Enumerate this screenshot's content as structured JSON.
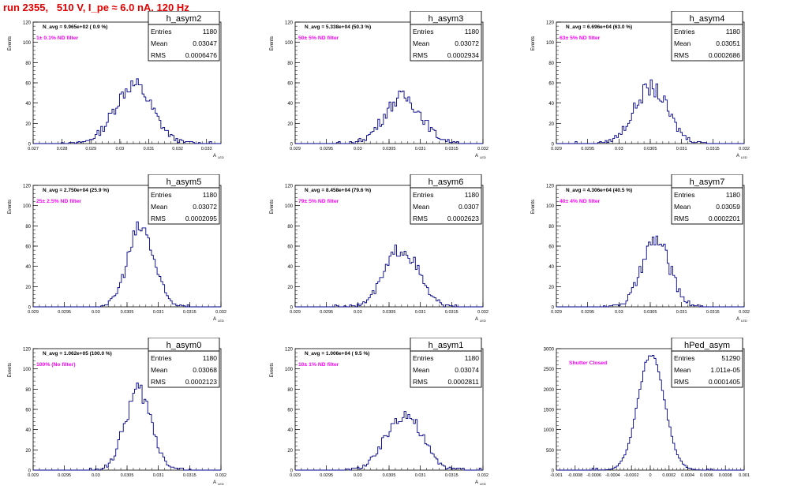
{
  "run_title": "run 2355,   510 V, I_pe ≈ 6.0 nA, 120 Hz",
  "colors": {
    "title": "#e00000",
    "hist": "#00008b",
    "annotation": "#ff00ff",
    "axis": "#000000"
  },
  "chart_data": [
    {
      "type": "histogram",
      "name": "h_asym2",
      "stats": {
        "entries": "1180",
        "mean": "0.03047",
        "rms": "0.0006476"
      },
      "navg": "N_avg = 9.965e+02 ( 0.9 %)",
      "filter": "1± 0.1% ND filter",
      "xlim": [
        0.027,
        0.0335
      ],
      "ylim": [
        0,
        120
      ],
      "xticks": [
        "0.027",
        "0.028",
        "0.029",
        "0.03",
        "0.031",
        "0.032",
        "0.033"
      ],
      "yticks": [
        "0",
        "20",
        "40",
        "60",
        "80",
        "100",
        "120"
      ],
      "ylabel": "Events",
      "xlabel": "A",
      "mean": 0.03047,
      "rms": 0.0006476,
      "peak": 58,
      "nbins": 100
    },
    {
      "type": "histogram",
      "name": "h_asym3",
      "stats": {
        "entries": "1180",
        "mean": "0.03072",
        "rms": "0.0002934"
      },
      "navg": "N_avg = 5.338e+04 (50.3 %)",
      "filter": "50± 5% ND filter",
      "xlim": [
        0.029,
        0.032
      ],
      "ylim": [
        0,
        120
      ],
      "xticks": [
        "0.029",
        "0.0295",
        "0.03",
        "0.0305",
        "0.031",
        "0.0315",
        "0.032"
      ],
      "yticks": [
        "0",
        "20",
        "40",
        "60",
        "80",
        "100",
        "120"
      ],
      "ylabel": "Events",
      "xlabel": "A",
      "mean": 0.03072,
      "rms": 0.0002934,
      "peak": 46,
      "nbins": 100
    },
    {
      "type": "histogram",
      "name": "h_asym4",
      "stats": {
        "entries": "1180",
        "mean": "0.03051",
        "rms": "0.0002686"
      },
      "navg": "N_avg = 6.696e+04 (63.0 %)",
      "filter": "63± 5% ND filter",
      "xlim": [
        0.029,
        0.032
      ],
      "ylim": [
        0,
        120
      ],
      "xticks": [
        "0.029",
        "0.0295",
        "0.03",
        "0.0305",
        "0.031",
        "0.0315",
        "0.032"
      ],
      "yticks": [
        "0",
        "20",
        "40",
        "60",
        "80",
        "100",
        "120"
      ],
      "ylabel": "Events",
      "xlabel": "A",
      "mean": 0.03051,
      "rms": 0.0002686,
      "peak": 55,
      "nbins": 100
    },
    {
      "type": "histogram",
      "name": "h_asym5",
      "stats": {
        "entries": "1180",
        "mean": "0.03072",
        "rms": "0.0002095"
      },
      "navg": "N_avg = 2.750e+04 (25.9 %)",
      "filter": "25± 2.5% ND filter",
      "xlim": [
        0.029,
        0.032
      ],
      "ylim": [
        0,
        120
      ],
      "xticks": [
        "0.029",
        "0.0295",
        "0.03",
        "0.0305",
        "0.031",
        "0.0315",
        "0.032"
      ],
      "yticks": [
        "0",
        "20",
        "40",
        "60",
        "80",
        "100",
        "120"
      ],
      "ylabel": "Events",
      "xlabel": "A",
      "mean": 0.03072,
      "rms": 0.0002095,
      "peak": 78,
      "nbins": 100
    },
    {
      "type": "histogram",
      "name": "h_asym6",
      "stats": {
        "entries": "1180",
        "mean": "0.0307",
        "rms": "0.0002623"
      },
      "navg": "N_avg = 8.458e+04 (79.6 %)",
      "filter": "79± 5% ND filter",
      "xlim": [
        0.029,
        0.032
      ],
      "ylim": [
        0,
        120
      ],
      "xticks": [
        "0.029",
        "0.0295",
        "0.03",
        "0.0305",
        "0.031",
        "0.0315",
        "0.032"
      ],
      "yticks": [
        "0",
        "20",
        "40",
        "60",
        "80",
        "100",
        "120"
      ],
      "ylabel": "Events",
      "xlabel": "A",
      "mean": 0.0307,
      "rms": 0.0002623,
      "peak": 58,
      "nbins": 100
    },
    {
      "type": "histogram",
      "name": "h_asym7",
      "stats": {
        "entries": "1180",
        "mean": "0.03059",
        "rms": "0.0002201"
      },
      "navg": "N_avg = 4.306e+04 (40.5 %)",
      "filter": "40± 4% ND filter",
      "xlim": [
        0.029,
        0.032
      ],
      "ylim": [
        0,
        120
      ],
      "xticks": [
        "0.029",
        "0.0295",
        "0.03",
        "0.0305",
        "0.031",
        "0.0315",
        "0.032"
      ],
      "yticks": [
        "0",
        "20",
        "40",
        "60",
        "80",
        "100",
        "120"
      ],
      "ylabel": "Events",
      "xlabel": "A",
      "mean": 0.03059,
      "rms": 0.0002201,
      "peak": 66,
      "nbins": 100
    },
    {
      "type": "histogram",
      "name": "h_asym0",
      "stats": {
        "entries": "1180",
        "mean": "0.03068",
        "rms": "0.0002123"
      },
      "navg": "N_avg = 1.062e+05 (100.0 %)",
      "filter": "100% (No filter)",
      "xlim": [
        0.029,
        0.032
      ],
      "ylim": [
        0,
        120
      ],
      "xticks": [
        "0.029",
        "0.0295",
        "0.03",
        "0.0305",
        "0.031",
        "0.0315",
        "0.032"
      ],
      "yticks": [
        "0",
        "20",
        "40",
        "60",
        "80",
        "100",
        "120"
      ],
      "ylabel": "Events",
      "xlabel": "A",
      "mean": 0.03068,
      "rms": 0.0002123,
      "peak": 78,
      "nbins": 100
    },
    {
      "type": "histogram",
      "name": "h_asym1",
      "stats": {
        "entries": "1180",
        "mean": "0.03074",
        "rms": "0.0002811"
      },
      "navg": "N_avg = 1.006e+04 ( 9.5 %)",
      "filter": "10± 1% ND filter",
      "xlim": [
        0.029,
        0.032
      ],
      "ylim": [
        0,
        120
      ],
      "xticks": [
        "0.029",
        "0.0295",
        "0.03",
        "0.0305",
        "0.031",
        "0.0315",
        "0.032"
      ],
      "yticks": [
        "0",
        "20",
        "40",
        "60",
        "80",
        "100",
        "120"
      ],
      "ylabel": "Events",
      "xlabel": "A",
      "mean": 0.03074,
      "rms": 0.0002811,
      "peak": 56,
      "nbins": 100
    },
    {
      "type": "histogram",
      "name": "hPed_asym",
      "stats": {
        "entries": "51290",
        "mean": "1.011e-05",
        "rms": "0.0001405"
      },
      "navg": "",
      "filter": "Shutter Closed",
      "xlim": [
        -0.001,
        0.001
      ],
      "ylim": [
        0,
        3000
      ],
      "xticks": [
        "-0.001",
        "-0.0008",
        "-0.0006",
        "-0.0004",
        "-0.0002",
        "0",
        "0.0002",
        "0.0004",
        "0.0006",
        "0.0008",
        "0.001"
      ],
      "yticks": [
        "0",
        "500",
        "1000",
        "1500",
        "2000",
        "2500",
        "3000"
      ],
      "ylabel": "",
      "xlabel": "",
      "mean": 1.011e-05,
      "rms": 0.0001405,
      "peak": 2860,
      "nbins": 100
    }
  ]
}
